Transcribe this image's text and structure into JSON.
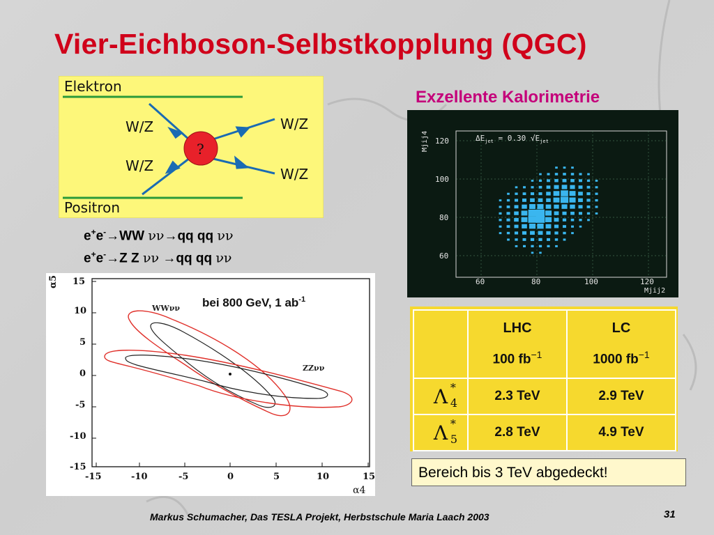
{
  "slide": {
    "title": "Vier-Eichboson-Selbstkopplung (QGC)",
    "footer": "Markus Schumacher, Das TESLA Projekt, Herbstschule Maria Laach 2003",
    "page_number": "31"
  },
  "feynman_diagram": {
    "background": "#fdf77a",
    "line_color": "#1a6bb3",
    "top_label": "Elektron",
    "bottom_label": "Positron",
    "left_upper": "W/Z",
    "left_lower": "W/Z",
    "right_upper": "W/Z",
    "right_lower": "W/Z",
    "vertex_label": "?",
    "vertex_color": "#e8212a"
  },
  "reactions": {
    "line1": {
      "beam": "e",
      "charge": "+",
      "beam2": "e",
      "charge2": "-",
      "arrow1": "→",
      "final1": "WW ",
      "nu1": "νν",
      "arrow2": "→",
      "final2": "qq qq ",
      "nu2": "νν"
    },
    "line2": {
      "beam": "e",
      "charge": "+",
      "beam2": "e",
      "charge2": "-",
      "arrow1": "→",
      "final1": "Z Z  ",
      "nu1": "νν",
      "arrow2": " →",
      "final2": "qq qq ",
      "nu2": "νν"
    }
  },
  "contour_plot": {
    "annotation": "bei 800 GeV, 1 ab",
    "annotation_sup": "-1",
    "curve_label_ww": "WWνν",
    "curve_label_zz": "ZZνν",
    "xlabel": "α4",
    "ylabel": "α5",
    "x_ticks": [
      "-15",
      "-10",
      "-5",
      "0",
      "5",
      "10",
      "15"
    ],
    "y_ticks": [
      "15",
      "10",
      "5",
      "0",
      "-5",
      "-10",
      "-15"
    ],
    "inner_color": "#222222",
    "outer_color": "#e0302a"
  },
  "calorimetry": {
    "title": "Exzellente Kalorimetrie",
    "title_color": "#c4007a",
    "annotation": "ΔE",
    "annotation_sub": "jet",
    "annotation_mid": " = 0.30 √E",
    "annotation_sub2": "jet",
    "xlabel": "Mjij2",
    "ylabel": "Mjij4",
    "x_ticks": [
      "60",
      "80",
      "100",
      "120"
    ],
    "y_ticks": [
      "120",
      "100",
      "80",
      "60"
    ],
    "background": "#0b1a12",
    "cell_color": "#3ab6ef"
  },
  "results_table": {
    "columns": [
      {
        "name": "LHC",
        "lumi": "100 fb",
        "lumi_exp": "−1"
      },
      {
        "name": "LC",
        "lumi": "1000 fb",
        "lumi_exp": "−1"
      }
    ],
    "rows": [
      {
        "symbol": "Λ",
        "sup": "*",
        "sub": "4",
        "values": [
          "2.3 TeV",
          "2.9 TeV"
        ]
      },
      {
        "symbol": "Λ",
        "sup": "*",
        "sub": "5",
        "values": [
          "2.8 TeV",
          "4.9 TeV"
        ]
      }
    ]
  },
  "callout": {
    "text": "Bereich bis 3 TeV abgedeckt!"
  }
}
